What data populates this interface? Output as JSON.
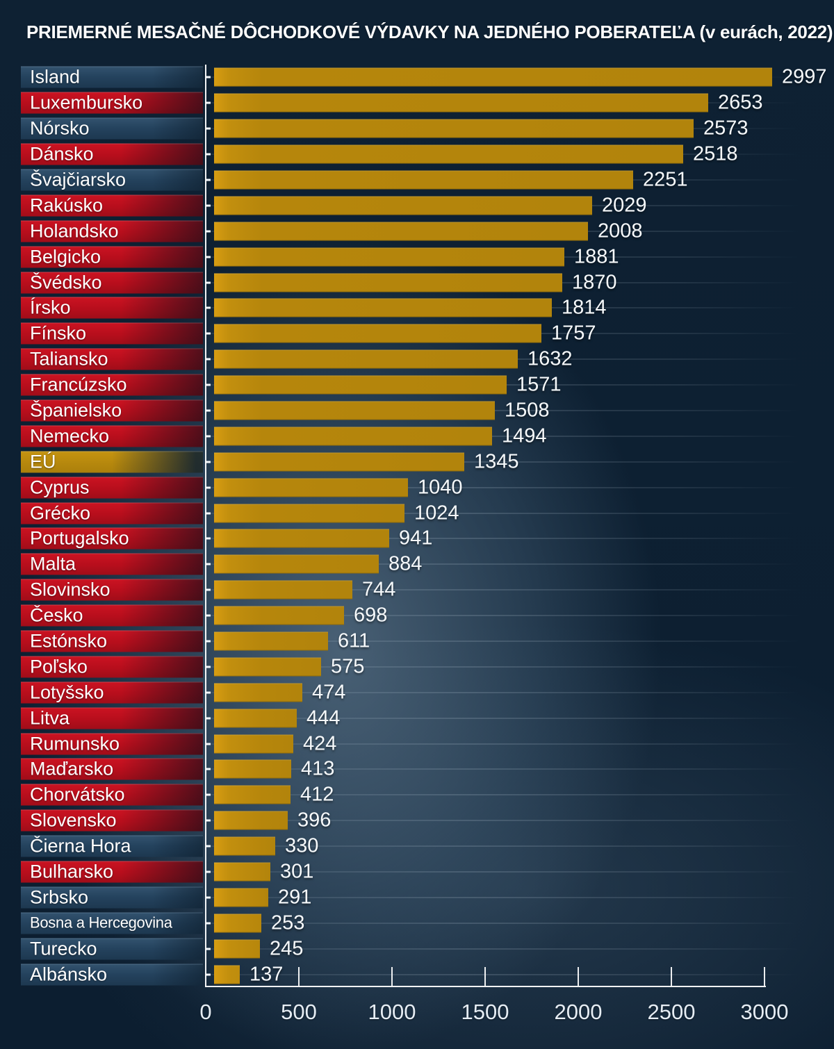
{
  "title": "PRIEMERNÉ MESAČNÉ DÔCHODKOVÉ VÝDAVKY NA JEDNÉHO POBERATEĽA (v eurách, 2022)",
  "colors": {
    "background": "#0d2033",
    "background_highlight": "#4e6b84",
    "bar_gold": "#b6860c",
    "bar_gold_edge": "#d79d12",
    "label_eu_red": "#c31020",
    "label_non_eu_navy": "#2d4b66",
    "label_eu_aggregate_gold": "#bd8d0e",
    "axis_line": "#ffffff",
    "text": "#ffffff"
  },
  "chart_data": {
    "type": "bar",
    "orientation": "horizontal",
    "title": "PRIEMERNÉ MESAČNÉ DÔCHODKOVÉ VÝDAVKY NA JEDNÉHO POBERATEĽA (v eurách, 2022)",
    "xlabel": "",
    "ylabel": "",
    "unit": "EUR",
    "xlim": [
      0,
      3000
    ],
    "x_ticks": [
      0,
      500,
      1000,
      1500,
      2000,
      2500,
      3000
    ],
    "grid": "faint horizontal guide line per row",
    "legend": "none",
    "group_meaning": {
      "eu": "red label background",
      "non-eu": "navy label background",
      "eu-aggregate": "gold label background"
    },
    "countries": [
      {
        "label": "Island",
        "value": 2997,
        "group": "non-eu"
      },
      {
        "label": "Luxembursko",
        "value": 2653,
        "group": "eu"
      },
      {
        "label": "Nórsko",
        "value": 2573,
        "group": "non-eu"
      },
      {
        "label": "Dánsko",
        "value": 2518,
        "group": "eu"
      },
      {
        "label": "Švajčiarsko",
        "value": 2251,
        "group": "non-eu"
      },
      {
        "label": "Rakúsko",
        "value": 2029,
        "group": "eu"
      },
      {
        "label": "Holandsko",
        "value": 2008,
        "group": "eu"
      },
      {
        "label": "Belgicko",
        "value": 1881,
        "group": "eu"
      },
      {
        "label": "Švédsko",
        "value": 1870,
        "group": "eu"
      },
      {
        "label": "Írsko",
        "value": 1814,
        "group": "eu"
      },
      {
        "label": "Fínsko",
        "value": 1757,
        "group": "eu"
      },
      {
        "label": "Taliansko",
        "value": 1632,
        "group": "eu"
      },
      {
        "label": "Francúzsko",
        "value": 1571,
        "group": "eu"
      },
      {
        "label": "Španielsko",
        "value": 1508,
        "group": "eu"
      },
      {
        "label": "Nemecko",
        "value": 1494,
        "group": "eu"
      },
      {
        "label": "EÚ",
        "value": 1345,
        "group": "eu-aggregate"
      },
      {
        "label": "Cyprus",
        "value": 1040,
        "group": "eu"
      },
      {
        "label": "Grécko",
        "value": 1024,
        "group": "eu"
      },
      {
        "label": "Portugalsko",
        "value": 941,
        "group": "eu"
      },
      {
        "label": "Malta",
        "value": 884,
        "group": "eu"
      },
      {
        "label": "Slovinsko",
        "value": 744,
        "group": "eu"
      },
      {
        "label": "Česko",
        "value": 698,
        "group": "eu"
      },
      {
        "label": "Estónsko",
        "value": 611,
        "group": "eu"
      },
      {
        "label": "Poľsko",
        "value": 575,
        "group": "eu"
      },
      {
        "label": "Lotyšsko",
        "value": 474,
        "group": "eu"
      },
      {
        "label": "Litva",
        "value": 444,
        "group": "eu"
      },
      {
        "label": "Rumunsko",
        "value": 424,
        "group": "eu"
      },
      {
        "label": "Maďarsko",
        "value": 413,
        "group": "eu"
      },
      {
        "label": "Chorvátsko",
        "value": 412,
        "group": "eu"
      },
      {
        "label": "Slovensko",
        "value": 396,
        "group": "eu"
      },
      {
        "label": "Čierna Hora",
        "value": 330,
        "group": "non-eu"
      },
      {
        "label": "Bulharsko",
        "value": 301,
        "group": "eu"
      },
      {
        "label": "Srbsko",
        "value": 291,
        "group": "non-eu"
      },
      {
        "label": "Bosna a Hercegovina",
        "value": 253,
        "group": "non-eu"
      },
      {
        "label": "Turecko",
        "value": 245,
        "group": "non-eu"
      },
      {
        "label": "Albánsko",
        "value": 137,
        "group": "non-eu"
      }
    ]
  }
}
